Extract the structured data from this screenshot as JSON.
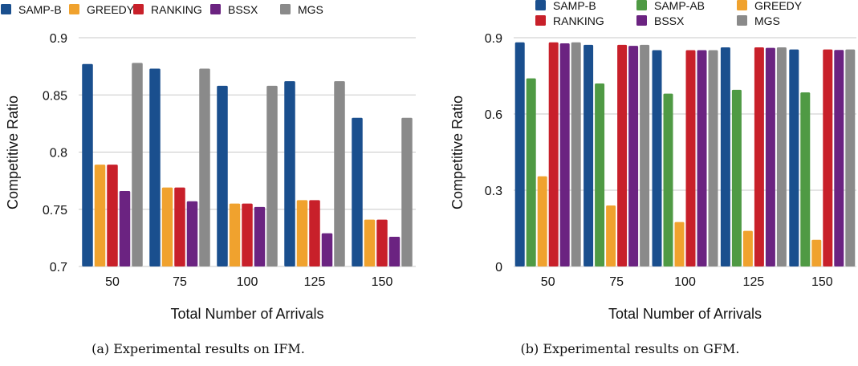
{
  "chart_data": [
    {
      "type": "bar",
      "caption": "(a) Experimental results on IFM.",
      "xlabel": "Total Number of Arrivals",
      "ylabel": "Competitive Ratio",
      "ylim": [
        0.7,
        0.9
      ],
      "yticks": [
        0.7,
        0.75,
        0.8,
        0.85,
        0.9
      ],
      "ytick_labels": [
        "0.7",
        "0.75",
        "0.8",
        "0.85",
        "0.9"
      ],
      "grid": "horizontal",
      "legend_placement": "top",
      "categories": [
        "50",
        "75",
        "100",
        "125",
        "150"
      ],
      "series": [
        {
          "name": "SAMP-B",
          "color": "#1a4f8e",
          "values": [
            0.877,
            0.873,
            0.858,
            0.862,
            0.83
          ]
        },
        {
          "name": "GREEDY",
          "color": "#f0a22e",
          "values": [
            0.789,
            0.769,
            0.755,
            0.758,
            0.741
          ]
        },
        {
          "name": "RANKING",
          "color": "#c8202a",
          "values": [
            0.789,
            0.769,
            0.755,
            0.758,
            0.741
          ]
        },
        {
          "name": "BSSX",
          "color": "#6b2381",
          "values": [
            0.766,
            0.757,
            0.752,
            0.729,
            0.726
          ]
        },
        {
          "name": "MGS",
          "color": "#8a8a8a",
          "values": [
            0.878,
            0.873,
            0.858,
            0.862,
            0.83
          ]
        }
      ]
    },
    {
      "type": "bar",
      "caption": "(b) Experimental results on GFM.",
      "xlabel": "Total Number of Arrivals",
      "ylabel": "Competitive Ratio",
      "ylim": [
        0,
        0.9
      ],
      "yticks": [
        0,
        0.3,
        0.6,
        0.9
      ],
      "ytick_labels": [
        "0",
        "0.3",
        "0.6",
        "0.9"
      ],
      "grid": "horizontal",
      "legend_placement": "top",
      "categories": [
        "50",
        "75",
        "100",
        "125",
        "150"
      ],
      "series": [
        {
          "name": "SAMP-B",
          "color": "#1a4f8e",
          "values": [
            0.882,
            0.872,
            0.851,
            0.862,
            0.854
          ]
        },
        {
          "name": "SAMP-AB",
          "color": "#4f9a44",
          "values": [
            0.74,
            0.72,
            0.68,
            0.695,
            0.685
          ]
        },
        {
          "name": "GREEDY",
          "color": "#f0a22e",
          "values": [
            0.355,
            0.24,
            0.175,
            0.14,
            0.105
          ]
        },
        {
          "name": "RANKING",
          "color": "#c8202a",
          "values": [
            0.882,
            0.872,
            0.851,
            0.862,
            0.854
          ]
        },
        {
          "name": "BSSX",
          "color": "#6b2381",
          "values": [
            0.878,
            0.868,
            0.851,
            0.86,
            0.852
          ]
        },
        {
          "name": "MGS",
          "color": "#8a8a8a",
          "values": [
            0.882,
            0.872,
            0.851,
            0.862,
            0.854
          ]
        }
      ]
    }
  ]
}
